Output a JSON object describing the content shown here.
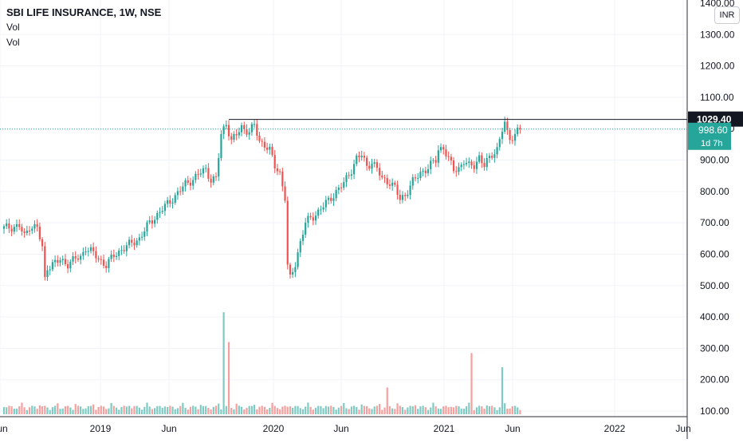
{
  "chart_data": {
    "type": "candlestick",
    "title": "SBI LIFE INSURANCE, 1W, NSE",
    "indicators": [
      "Vol",
      "Vol"
    ],
    "currency": "INR",
    "y_ticks": [
      "1300.00",
      "1200.00",
      "1100.00",
      "1000.00",
      "900.00",
      "800.00",
      "700.00",
      "600.00",
      "500.00",
      "400.00",
      "300.00",
      "200.00",
      "100.00"
    ],
    "y_top_partial": "1400.00",
    "x_ticks": [
      "Jun",
      "2019",
      "Jun",
      "2020",
      "Jun",
      "2021",
      "Jun",
      "2022",
      "Jun"
    ],
    "resistance_line": {
      "value": 1029.4,
      "label": "1029.40"
    },
    "last_price": {
      "value": 998.6,
      "label": "998.60",
      "countdown": "1d 7h"
    },
    "colors": {
      "up": "#26a69a",
      "down": "#ef5350",
      "volume_up": "#7fcbc3",
      "volume_down": "#f4a09e",
      "resistance": "#131722",
      "last_price": "#26a69a",
      "grid": "#f0f3fa"
    },
    "price_keypoints": [
      [
        0,
        683
      ],
      [
        6,
        690
      ],
      [
        8,
        655
      ],
      [
        10,
        690
      ],
      [
        13,
        685
      ],
      [
        15,
        618
      ],
      [
        16,
        520
      ],
      [
        17,
        560
      ],
      [
        22,
        580
      ],
      [
        25,
        570
      ],
      [
        28,
        585
      ],
      [
        30,
        590
      ],
      [
        32,
        622
      ],
      [
        35,
        602
      ],
      [
        37,
        585
      ],
      [
        40,
        565
      ],
      [
        43,
        595
      ],
      [
        46,
        615
      ],
      [
        49,
        630
      ],
      [
        53,
        650
      ],
      [
        57,
        700
      ],
      [
        61,
        735
      ],
      [
        64,
        760
      ],
      [
        68,
        795
      ],
      [
        71,
        823
      ],
      [
        74,
        840
      ],
      [
        77,
        860
      ],
      [
        79,
        870
      ],
      [
        81,
        838
      ],
      [
        83,
        840
      ],
      [
        85,
        980
      ],
      [
        87,
        1020
      ],
      [
        89,
        960
      ],
      [
        91,
        980
      ],
      [
        93,
        1005
      ],
      [
        96,
        990
      ],
      [
        98,
        1010
      ],
      [
        100,
        960
      ],
      [
        102,
        950
      ],
      [
        104,
        930
      ],
      [
        106,
        880
      ],
      [
        108,
        860
      ],
      [
        110,
        780
      ],
      [
        111,
        560
      ],
      [
        112,
        520
      ],
      [
        114,
        570
      ],
      [
        116,
        640
      ],
      [
        118,
        700
      ],
      [
        121,
        720
      ],
      [
        124,
        745
      ],
      [
        127,
        770
      ],
      [
        130,
        800
      ],
      [
        133,
        825
      ],
      [
        136,
        870
      ],
      [
        138,
        905
      ],
      [
        140,
        915
      ],
      [
        142,
        880
      ],
      [
        144,
        895
      ],
      [
        146,
        870
      ],
      [
        148,
        840
      ],
      [
        151,
        830
      ],
      [
        153,
        810
      ],
      [
        155,
        775
      ],
      [
        157,
        790
      ],
      [
        160,
        830
      ],
      [
        163,
        860
      ],
      [
        166,
        875
      ],
      [
        169,
        900
      ],
      [
        170,
        935
      ],
      [
        172,
        940
      ],
      [
        174,
        900
      ],
      [
        176,
        870
      ],
      [
        178,
        875
      ],
      [
        180,
        895
      ],
      [
        182,
        880
      ],
      [
        184,
        885
      ],
      [
        186,
        910
      ],
      [
        188,
        880
      ],
      [
        191,
        920
      ],
      [
        193,
        935
      ],
      [
        195,
        995
      ],
      [
        196,
        1015
      ],
      [
        197,
        985
      ],
      [
        198,
        972
      ],
      [
        200,
        980
      ],
      [
        201,
        995
      ],
      [
        202,
        998.6
      ]
    ],
    "volume_spikes": {
      "86": 415,
      "88": 320,
      "150": 175,
      "183": 285,
      "195": 240
    },
    "n_weeks": 203
  }
}
